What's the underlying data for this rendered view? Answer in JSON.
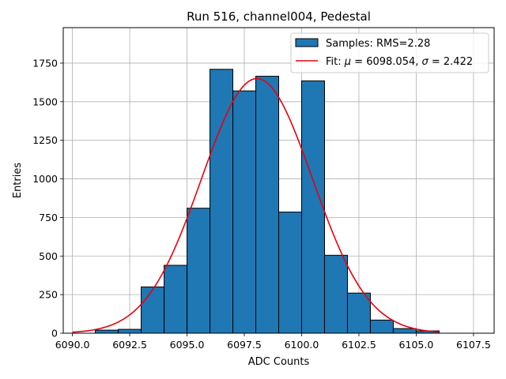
{
  "chart_data": {
    "type": "bar",
    "title": "Run 516, channel004, Pedestal",
    "xlabel": "ADC Counts",
    "ylabel": "Entries",
    "xlim": [
      6089.6,
      6108.4
    ],
    "ylim": [
      0,
      1980
    ],
    "x_ticks": [
      6090.0,
      6092.5,
      6095.0,
      6097.5,
      6100.0,
      6102.5,
      6105.0,
      6107.5
    ],
    "x_tick_labels": [
      "6090.0",
      "6092.5",
      "6095.0",
      "6097.5",
      "6100.0",
      "6102.5",
      "6105.0",
      "6107.5"
    ],
    "y_ticks": [
      0,
      250,
      500,
      750,
      1000,
      1250,
      1500,
      1750
    ],
    "y_tick_labels": [
      "0",
      "250",
      "500",
      "750",
      "1000",
      "1250",
      "1500",
      "1750"
    ],
    "grid": true,
    "legend_position": "top-right",
    "series": [
      {
        "name": "Samples: RMS=2.28",
        "type": "histogram",
        "color": "#1f77b4",
        "edge_color": "#000000",
        "bin_edges": [
          6091.0,
          6092.0,
          6093.0,
          6094.0,
          6095.0,
          6096.0,
          6097.0,
          6098.0,
          6099.0,
          6100.0,
          6101.0,
          6102.0,
          6103.0,
          6104.0,
          6105.0,
          6106.0
        ],
        "counts": [
          20,
          25,
          300,
          440,
          810,
          1710,
          1570,
          1665,
          785,
          1635,
          505,
          260,
          85,
          30,
          15
        ]
      },
      {
        "name": "Fit: μ = 6098.054, σ = 2.422",
        "type": "line",
        "color": "#e8000b",
        "function": "gaussian",
        "mu": 6098.054,
        "sigma": 2.422,
        "amplitude": 1650,
        "x_range": [
          6090.0,
          6106.0
        ]
      }
    ]
  }
}
